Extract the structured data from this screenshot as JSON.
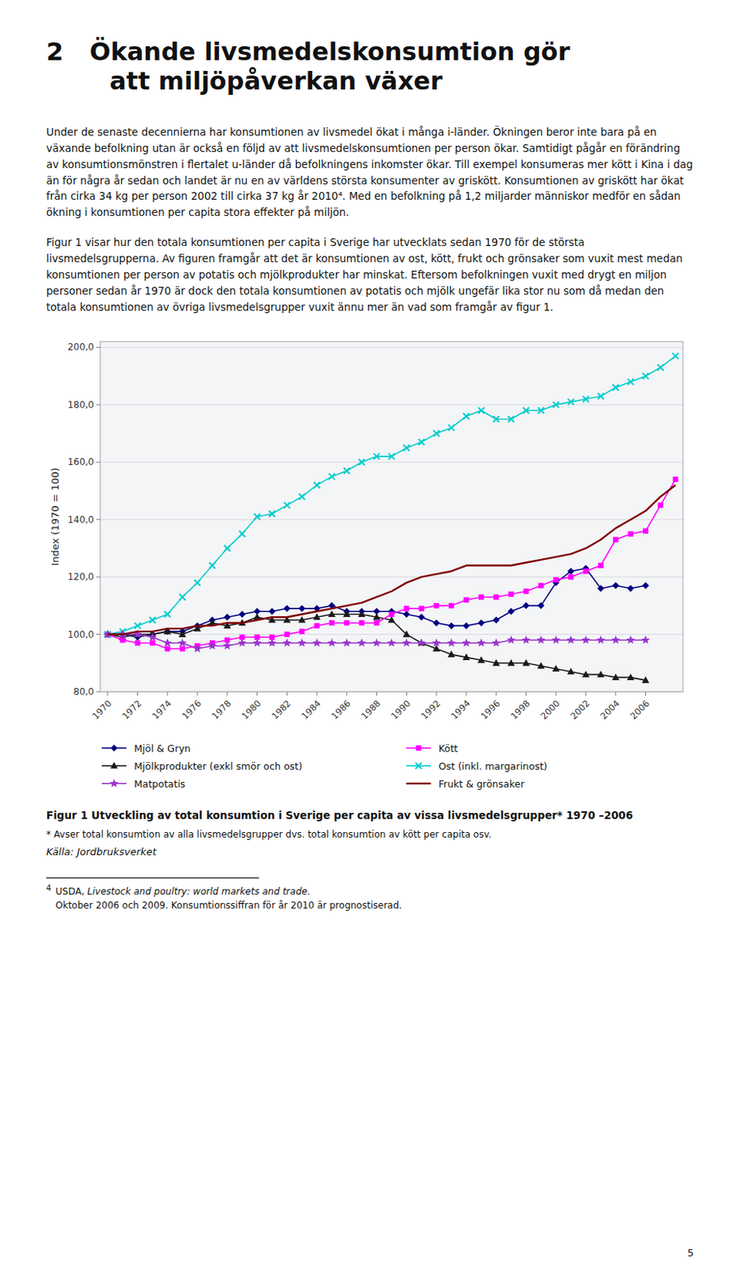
{
  "heading_number": "2",
  "heading": [
    "Ökande livsmedelskonsumtion gör",
    "att miljöpåverkan växer"
  ],
  "paragraphs": [
    "Under de senaste decennierna har konsumtionen av livsmedel ökat i många i-länder. Ökningen beror inte bara på en växande befolkning utan är också en följd av att livsmedelskonsumtionen per person ökar. Samtidigt pågår en förändring av konsumtionsmönstren i flertalet u-länder då befolkningens inkomster ökar. Till exempel konsumeras mer kött i Kina i dag än för några år sedan och landet är nu en av världens största konsumenter av griskött. Konsumtionen av griskött har ökat från cirka 34 kg per person 2002 till cirka 37 kg år 2010⁴. Med en befolkning på 1,2 miljarder människor medför en sådan ökning i konsumtionen per capita stora effekter på miljön.",
    "Figur 1 visar hur den totala konsumtionen per capita i Sverige har utvecklats sedan 1970 för de största livsmedelsgrupperna. Av figuren framgår att det är konsumtionen av ost, kött, frukt och grönsaker som vuxit mest medan konsumtionen per person av potatis och mjölkprodukter har minskat. Eftersom befolkningen vuxit med drygt en miljon personer sedan år 1970 är dock den totala konsumtionen av potatis och mjölk ungefär lika stor nu som då medan den totala konsumtionen av övriga livsmedelsgrupper vuxit ännu mer än vad som framgår av figur 1."
  ],
  "chart_data": {
    "type": "line",
    "title": "Figur 1 Utveckling av total konsumtion i Sverige per capita av vissa livsmedelsgrupper* 1970 –2006",
    "annotations": [
      "* Avser total konsumtion av alla livsmedelsgrupper dvs. total konsumtion av kött per capita osv.",
      "Källa: Jordbruksverket"
    ],
    "y_label": "Index (1970 = 100)",
    "xlim": [
      1969.5,
      2008.5
    ],
    "xticks": [
      1970,
      1972,
      1974,
      1976,
      1978,
      1980,
      1982,
      1984,
      1986,
      1988,
      1990,
      1992,
      1994,
      1996,
      1998,
      2000,
      2002,
      2004,
      2006
    ],
    "ylim": [
      80,
      202
    ],
    "yticks": [
      {
        "value": 80,
        "label": "80,0"
      },
      {
        "value": 100,
        "label": "100,0"
      },
      {
        "value": 120,
        "label": "120,0"
      },
      {
        "value": 140,
        "label": "140,0"
      },
      {
        "value": 160,
        "label": "160,0"
      },
      {
        "value": 180,
        "label": "180,0"
      },
      {
        "value": 200,
        "label": "200,0"
      }
    ],
    "grid": true,
    "legend": "bottom",
    "series": [
      {
        "name": "Mjöl & Gryn",
        "color": "#000080",
        "marker": "diamond",
        "x": [
          1970,
          1971,
          1972,
          1973,
          1974,
          1975,
          1976,
          1977,
          1978,
          1979,
          1980,
          1981,
          1982,
          1983,
          1984,
          1985,
          1986,
          1987,
          1988,
          1989,
          1990,
          1991,
          1992,
          1993,
          1994,
          1995,
          1996,
          1997,
          1998,
          1999,
          2000,
          2001,
          2002,
          2003,
          2004,
          2005,
          2006
        ],
        "values": [
          100,
          100,
          99,
          100,
          101,
          101,
          103,
          105,
          106,
          107,
          108,
          108,
          109,
          109,
          109,
          110,
          108,
          108,
          108,
          108,
          107,
          106,
          104,
          103,
          103,
          104,
          105,
          108,
          110,
          110,
          118,
          122,
          123,
          116,
          117,
          116,
          117
        ]
      },
      {
        "name": "Mjölkprodukter (exkl smör och ost)",
        "color": "#1a1a1a",
        "marker": "triangle",
        "x": [
          1970,
          1971,
          1972,
          1973,
          1974,
          1975,
          1976,
          1977,
          1978,
          1979,
          1980,
          1981,
          1982,
          1983,
          1984,
          1985,
          1986,
          1987,
          1988,
          1989,
          1990,
          1991,
          1992,
          1993,
          1994,
          1995,
          1996,
          1997,
          1998,
          1999,
          2000,
          2001,
          2002,
          2003,
          2004,
          2005,
          2006
        ],
        "values": [
          100,
          99,
          100,
          100,
          101,
          100,
          102,
          104,
          103,
          104,
          106,
          105,
          105,
          105,
          106,
          107,
          107,
          107,
          106,
          105,
          100,
          97,
          95,
          93,
          92,
          91,
          90,
          90,
          90,
          89,
          88,
          87,
          86,
          86,
          85,
          85,
          84
        ]
      },
      {
        "name": "Kött",
        "color": "#FF00FF",
        "marker": "square",
        "x": [
          1970,
          1971,
          1972,
          1973,
          1974,
          1975,
          1976,
          1977,
          1978,
          1979,
          1980,
          1981,
          1982,
          1983,
          1984,
          1985,
          1986,
          1987,
          1988,
          1989,
          1990,
          1991,
          1992,
          1993,
          1994,
          1995,
          1996,
          1997,
          1998,
          1999,
          2000,
          2001,
          2002,
          2003,
          2004,
          2005,
          2006,
          2007,
          2008
        ],
        "values": [
          100,
          98,
          97,
          97,
          95,
          95,
          96,
          97,
          98,
          99,
          99,
          99,
          100,
          101,
          103,
          104,
          104,
          104,
          104,
          107,
          109,
          109,
          110,
          110,
          112,
          113,
          113,
          114,
          115,
          117,
          119,
          120,
          122,
          124,
          133,
          135,
          136,
          145,
          154
        ]
      },
      {
        "name": "Ost (inkl. margarinost)",
        "color": "#00CCCC",
        "marker": "x",
        "x": [
          1970,
          1971,
          1972,
          1973,
          1974,
          1975,
          1976,
          1977,
          1978,
          1979,
          1980,
          1981,
          1982,
          1983,
          1984,
          1985,
          1986,
          1987,
          1988,
          1989,
          1990,
          1991,
          1992,
          1993,
          1994,
          1995,
          1996,
          1997,
          1998,
          1999,
          2000,
          2001,
          2002,
          2003,
          2004,
          2005,
          2006,
          2007,
          2008
        ],
        "values": [
          100,
          101,
          103,
          105,
          107,
          113,
          118,
          124,
          130,
          135,
          141,
          142,
          145,
          148,
          152,
          155,
          157,
          160,
          162,
          162,
          165,
          167,
          170,
          172,
          176,
          178,
          175,
          175,
          178,
          178,
          180,
          181,
          182,
          183,
          186,
          188,
          190,
          193,
          197
        ]
      },
      {
        "name": "Matpotatis",
        "color": "#9933CC",
        "marker": "star",
        "x": [
          1970,
          1971,
          1972,
          1973,
          1974,
          1975,
          1976,
          1977,
          1978,
          1979,
          1980,
          1981,
          1982,
          1983,
          1984,
          1985,
          1986,
          1987,
          1988,
          1989,
          1990,
          1991,
          1992,
          1993,
          1994,
          1995,
          1996,
          1997,
          1998,
          1999,
          2000,
          2001,
          2002,
          2003,
          2004,
          2005,
          2006
        ],
        "values": [
          100,
          100,
          100,
          99,
          97,
          97,
          95,
          96,
          96,
          97,
          97,
          97,
          97,
          97,
          97,
          97,
          97,
          97,
          97,
          97,
          97,
          97,
          97,
          97,
          97,
          97,
          97,
          98,
          98,
          98,
          98,
          98,
          98,
          98,
          98,
          98,
          98
        ]
      },
      {
        "name": "Frukt & grönsaker",
        "color": "#800000",
        "marker": "none",
        "x": [
          1970,
          1971,
          1972,
          1973,
          1974,
          1975,
          1976,
          1977,
          1978,
          1979,
          1980,
          1981,
          1982,
          1983,
          1984,
          1985,
          1986,
          1987,
          1988,
          1989,
          1990,
          1991,
          1992,
          1993,
          1994,
          1995,
          1996,
          1997,
          1998,
          1999,
          2000,
          2001,
          2002,
          2003,
          2004,
          2005,
          2006,
          2007,
          2008
        ],
        "values": [
          100,
          100,
          101,
          101,
          102,
          102,
          103,
          103,
          104,
          104,
          105,
          106,
          106,
          107,
          108,
          109,
          110,
          111,
          113,
          115,
          118,
          120,
          121,
          122,
          124,
          124,
          124,
          124,
          125,
          126,
          127,
          128,
          130,
          133,
          137,
          140,
          143,
          148,
          152
        ]
      }
    ]
  },
  "footnote": {
    "number": "4",
    "plain": "USDA, ",
    "italic": "Livestock and poultry: world markets and trade.",
    "rest": "Oktober 2006 och 2009. Konsumtionssiffran för år 2010 är prognostiserad."
  },
  "page_number": "5"
}
